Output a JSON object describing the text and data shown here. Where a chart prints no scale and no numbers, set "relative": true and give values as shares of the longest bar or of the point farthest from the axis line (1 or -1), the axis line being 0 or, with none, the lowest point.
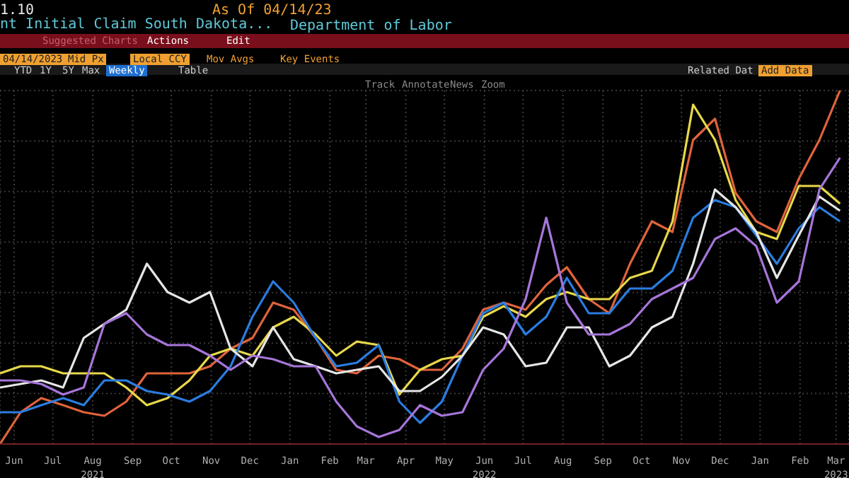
{
  "chart_data": {
    "type": "line",
    "title": "nt Initial Claim South Dakota...",
    "relative": true,
    "grid": true,
    "legend": false,
    "marker": "none",
    "line_style": "solid",
    "annotations": [
      "1.10",
      "As Of 04/14/23",
      "Department of Labor",
      "Suggested Charts",
      "Actions",
      "Edit",
      "04/14/2023",
      "Mid Px",
      "Local CCY",
      "Mov Avgs",
      "Key Events",
      "YTD",
      "1Y",
      "5Y",
      "Max",
      "Weekly",
      "Table",
      "Related Dat",
      "Add Data",
      "Track",
      "Annotate",
      "News",
      "Zoom"
    ],
    "x": [
      "2021-06-04",
      "2021-06-20",
      "2021-07-06",
      "2021-07-23",
      "2021-08-08",
      "2021-08-24",
      "2021-09-10",
      "2021-09-26",
      "2021-10-12",
      "2021-10-29",
      "2021-11-14",
      "2021-11-30",
      "2021-12-17",
      "2022-01-02",
      "2022-01-18",
      "2022-02-04",
      "2022-02-20",
      "2022-03-08",
      "2022-03-25",
      "2022-04-10",
      "2022-04-26",
      "2022-05-13",
      "2022-05-29",
      "2022-06-14",
      "2022-06-30",
      "2022-07-17",
      "2022-08-02",
      "2022-08-18",
      "2022-09-04",
      "2022-09-20",
      "2022-10-06",
      "2022-10-23",
      "2022-11-08",
      "2022-11-24",
      "2022-12-11",
      "2022-12-27",
      "2023-01-12",
      "2023-01-28",
      "2023-02-14",
      "2023-03-02",
      "2023-03-18"
    ],
    "xlim": [
      "2021-06-04",
      "2023-03-25"
    ],
    "xticks": [
      {
        "value": "2021-06-15",
        "label": "Jun"
      },
      {
        "value": "2021-07-15",
        "label": "Jul"
      },
      {
        "value": "2021-08-15",
        "label": "Aug\n2021"
      },
      {
        "value": "2021-09-15",
        "label": "Sep"
      },
      {
        "value": "2021-10-15",
        "label": "Oct"
      },
      {
        "value": "2021-11-15",
        "label": "Nov"
      },
      {
        "value": "2021-12-15",
        "label": "Dec"
      },
      {
        "value": "2022-01-15",
        "label": "Jan"
      },
      {
        "value": "2022-02-15",
        "label": "Feb"
      },
      {
        "value": "2022-03-15",
        "label": "Mar"
      },
      {
        "value": "2022-04-15",
        "label": "Apr"
      },
      {
        "value": "2022-05-15",
        "label": "May"
      },
      {
        "value": "2022-06-15",
        "label": "Jun\n2022"
      },
      {
        "value": "2022-07-15",
        "label": "Jul"
      },
      {
        "value": "2022-08-15",
        "label": "Aug"
      },
      {
        "value": "2022-09-15",
        "label": "Sep"
      },
      {
        "value": "2022-10-15",
        "label": "Oct"
      },
      {
        "value": "2022-11-15",
        "label": "Nov"
      },
      {
        "value": "2022-12-15",
        "label": "Dec"
      },
      {
        "value": "2023-01-15",
        "label": "Jan"
      },
      {
        "value": "2023-02-15",
        "label": "Feb"
      },
      {
        "value": "2023-03-15",
        "label": "Mar\n2023"
      }
    ],
    "series": [
      {
        "color": "#e0643c",
        "values": [
          0,
          0.09,
          0.13,
          0.11,
          0.09,
          0.08,
          0.12,
          0.2,
          0.2,
          0.2,
          0.22,
          0.27,
          0.3,
          0.4,
          0.38,
          0.3,
          0.21,
          0.2,
          0.25,
          0.24,
          0.21,
          0.21,
          0.27,
          0.38,
          0.4,
          0.38,
          0.45,
          0.5,
          0.41,
          0.37,
          0.51,
          0.63,
          0.6,
          0.86,
          0.92,
          0.71,
          0.63,
          0.6,
          0.75,
          0.86,
          1
        ]
      },
      {
        "color": "#e8d84a",
        "values": [
          0.2,
          0.22,
          0.22,
          0.2,
          0.2,
          0.2,
          0.16,
          0.11,
          0.13,
          0.18,
          0.25,
          0.27,
          0.25,
          0.33,
          0.36,
          0.31,
          0.25,
          0.29,
          0.28,
          0.14,
          0.21,
          0.24,
          0.25,
          0.36,
          0.39,
          0.36,
          0.41,
          0.43,
          0.41,
          0.41,
          0.47,
          0.49,
          0.63,
          0.96,
          0.86,
          0.69,
          0.6,
          0.58,
          0.73,
          0.73,
          0.68
        ]
      },
      {
        "color": "#2a7de1",
        "values": [
          0.09,
          0.09,
          0.11,
          0.13,
          0.11,
          0.18,
          0.18,
          0.15,
          0.14,
          0.12,
          0.15,
          0.22,
          0.36,
          0.46,
          0.4,
          0.3,
          0.22,
          0.23,
          0.28,
          0.12,
          0.06,
          0.12,
          0.25,
          0.37,
          0.4,
          0.31,
          0.36,
          0.47,
          0.37,
          0.37,
          0.44,
          0.44,
          0.49,
          0.64,
          0.69,
          0.67,
          0.59,
          0.51,
          0.61,
          0.67,
          0.63
        ]
      },
      {
        "color": "#e6e6e6",
        "values": [
          0.16,
          0.17,
          0.18,
          0.16,
          0.3,
          0.34,
          0.38,
          0.51,
          0.43,
          0.4,
          0.43,
          0.27,
          0.22,
          0.33,
          0.24,
          0.22,
          0.2,
          0.21,
          0.22,
          0.15,
          0.15,
          0.19,
          0.25,
          0.33,
          0.31,
          0.22,
          0.23,
          0.33,
          0.33,
          0.22,
          0.25,
          0.33,
          0.36,
          0.51,
          0.72,
          0.67,
          0.6,
          0.47,
          0.59,
          0.7,
          0.66
        ]
      },
      {
        "color": "#a676d9",
        "values": [
          0.18,
          0.18,
          0.17,
          0.14,
          0.16,
          0.34,
          0.37,
          0.31,
          0.28,
          0.28,
          0.25,
          0.21,
          0.25,
          0.24,
          0.22,
          0.22,
          0.12,
          0.05,
          0.02,
          0.04,
          0.11,
          0.08,
          0.09,
          0.21,
          0.27,
          0.41,
          0.64,
          0.4,
          0.31,
          0.31,
          0.34,
          0.41,
          0.44,
          0.47,
          0.58,
          0.61,
          0.56,
          0.4,
          0.46,
          0.72,
          0.81
        ]
      }
    ]
  }
}
